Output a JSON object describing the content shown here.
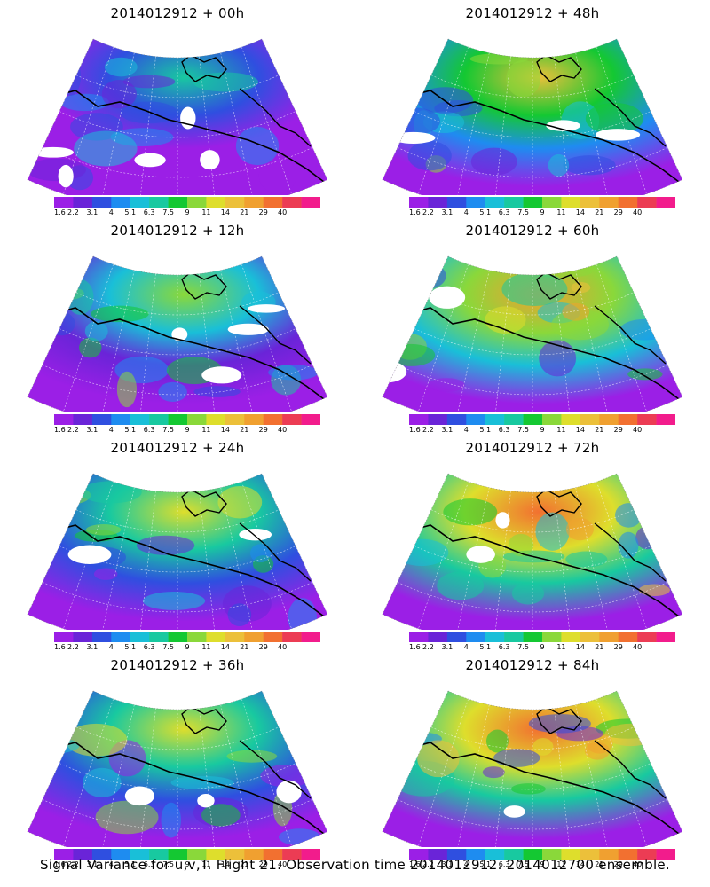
{
  "figure": {
    "caption": "Signal Variance for u,v,T. Flight 21. Observation time 2014012912. 2014012700 ensemble.",
    "colorbar": {
      "colors": [
        "#9b1fe6",
        "#6a24d8",
        "#2f4fe0",
        "#1e8cf0",
        "#19bfd8",
        "#18c9a0",
        "#14c832",
        "#8ad83a",
        "#dede2c",
        "#ecc03a",
        "#f0a030",
        "#f27030",
        "#ec3c54",
        "#f21c8c"
      ],
      "tick_labels": [
        "1.6",
        "2.2",
        "3.1",
        "4",
        "5.1",
        "6.3",
        "7.5",
        "9",
        "11",
        "14",
        "21",
        "29",
        "40"
      ]
    },
    "panels": [
      {
        "title": "2014012912 + 00h",
        "intensity": 0.18
      },
      {
        "title": "2014012912 + 48h",
        "intensity": 0.62
      },
      {
        "title": "2014012912 + 12h",
        "intensity": 0.35
      },
      {
        "title": "2014012912 + 60h",
        "intensity": 0.7
      },
      {
        "title": "2014012912 + 24h",
        "intensity": 0.45
      },
      {
        "title": "2014012912 + 72h",
        "intensity": 0.76
      },
      {
        "title": "2014012912 + 36h",
        "intensity": 0.53
      },
      {
        "title": "2014012912 + 84h",
        "intensity": 0.8
      }
    ]
  }
}
